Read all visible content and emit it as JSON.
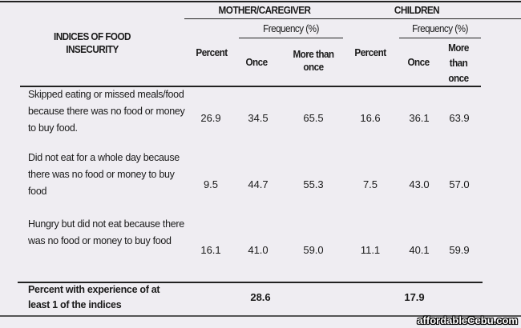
{
  "header": {
    "indices_label": "INDICES OF FOOD INSECURITY",
    "group_mother": "MOTHER/CAREGIVER",
    "group_children": "CHILDREN",
    "frequency_mother": "Frequency (%)",
    "frequency_children": "Frequency (%)",
    "percent": "Percent",
    "once": "Once",
    "more_than_once": "More than once"
  },
  "rows": [
    {
      "label": "Skipped eating or missed meals/food because there was no food or money to buy food.",
      "mother_percent": "26.9",
      "mother_once": "34.5",
      "mother_more": "65.5",
      "child_percent": "16.6",
      "child_once": "36.1",
      "child_more": "63.9"
    },
    {
      "label": "Did not eat for a whole day because there was no food or money to buy food",
      "mother_percent": "9.5",
      "mother_once": "44.7",
      "mother_more": "55.3",
      "child_percent": "7.5",
      "child_once": "43.0",
      "child_more": "57.0"
    },
    {
      "label": "Hungry but did not eat because there was no food or money to buy food",
      "mother_percent": "16.1",
      "mother_once": "41.0",
      "mother_more": "59.0",
      "child_percent": "11.1",
      "child_once": "40.1",
      "child_more": "59.9"
    }
  ],
  "summary": {
    "label": "Percent with experience of at least 1 of the indices",
    "mother": "28.6",
    "children": "17.9"
  },
  "watermark": "affordableCebu.com"
}
